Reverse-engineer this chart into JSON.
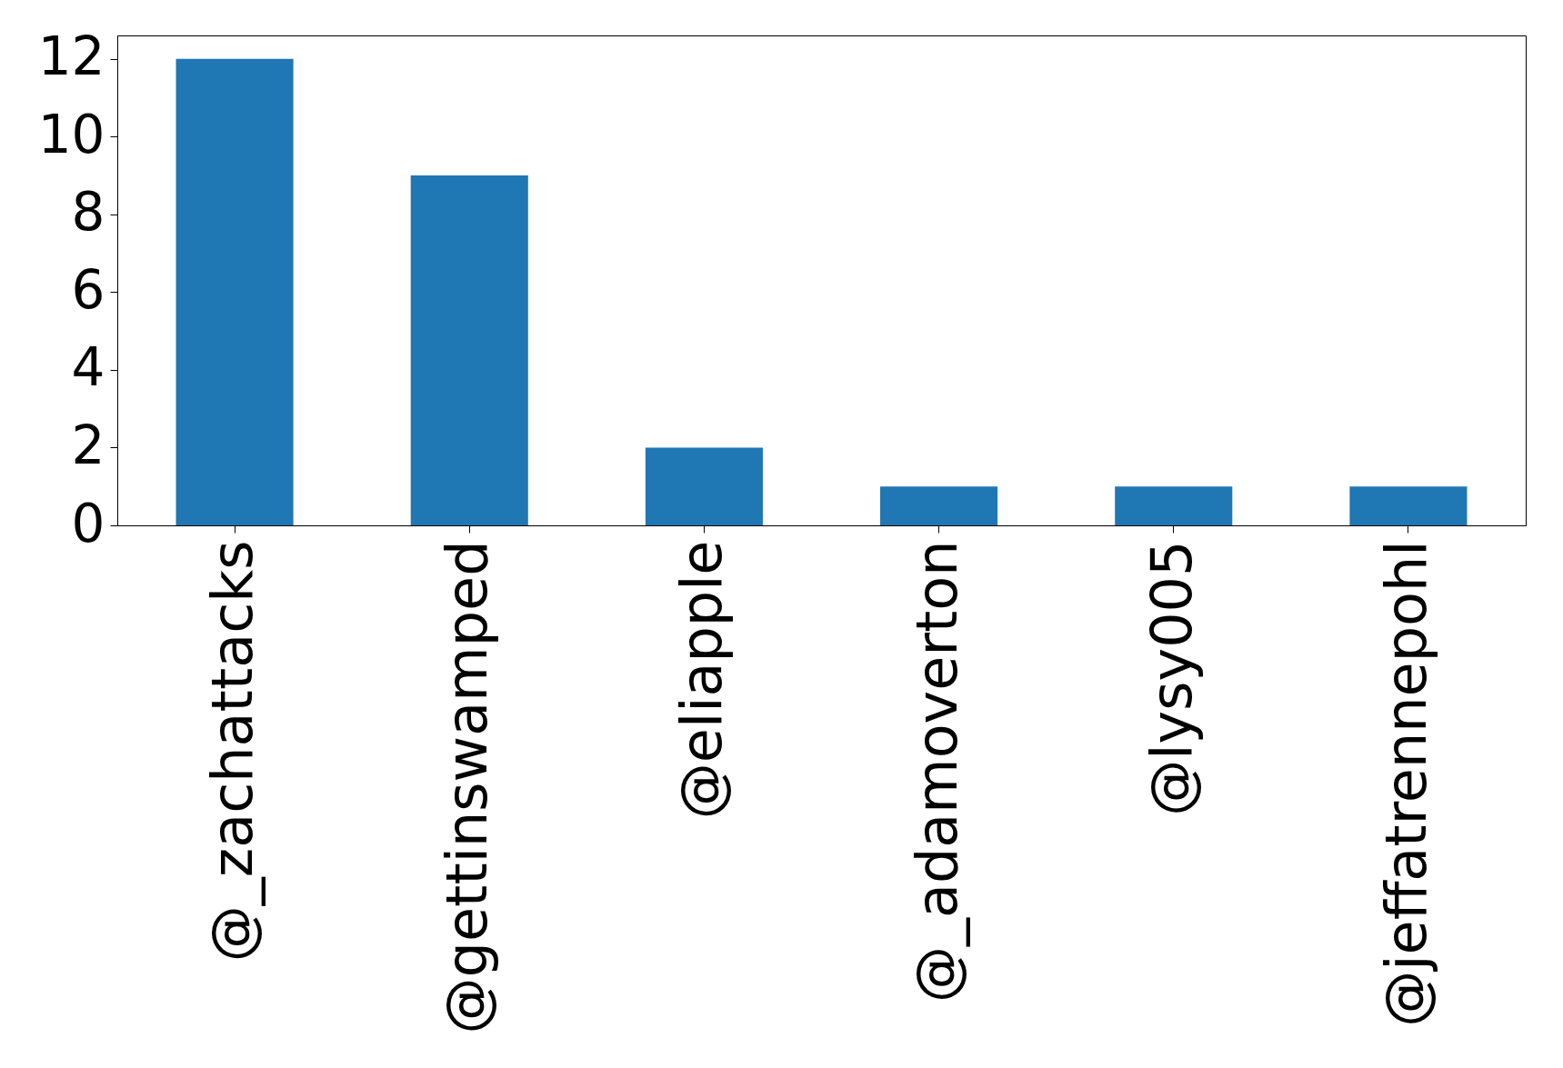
{
  "chart_data": {
    "type": "bar",
    "categories": [
      "@_zachattacks",
      "@gettinswamped",
      "@eliapple",
      "@_adamoverton",
      "@lysy005",
      "@jeffatrennepohl"
    ],
    "values": [
      12,
      9,
      2,
      1,
      1,
      1
    ],
    "color": "#1f77b4",
    "ylim": [
      0,
      12.6
    ],
    "yticks": [
      0,
      2,
      4,
      6,
      8,
      10,
      12
    ],
    "grid": false
  }
}
